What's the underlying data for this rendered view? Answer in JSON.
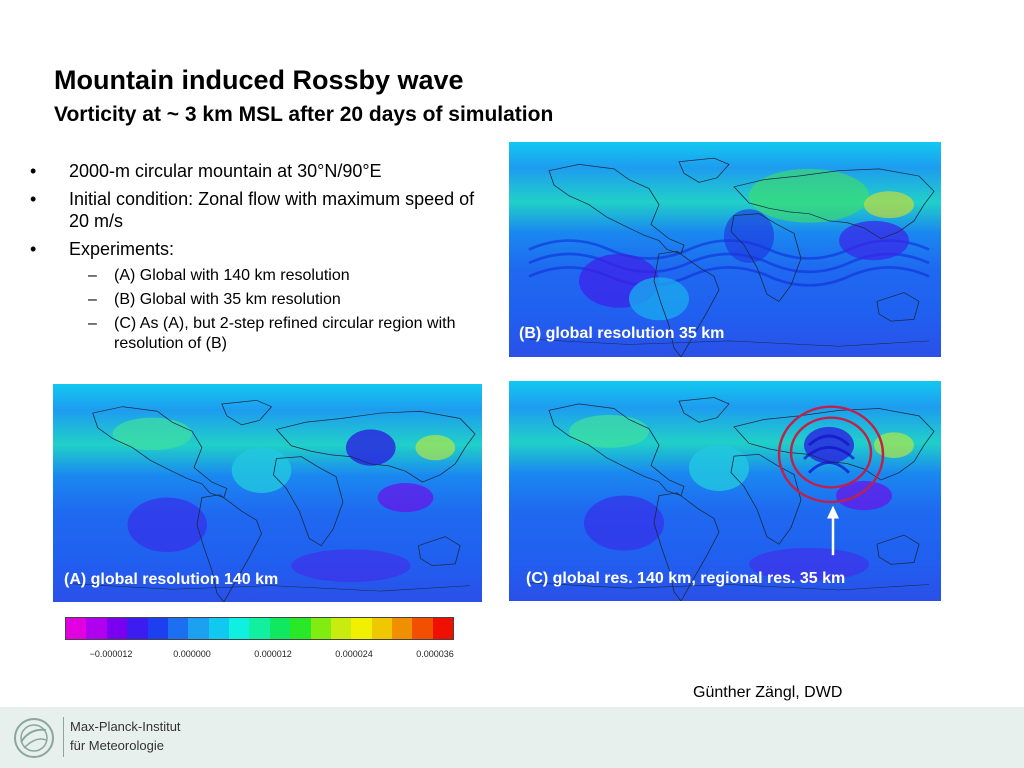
{
  "header": {
    "title": "Mountain induced Rossby wave",
    "subtitle": "Vorticity at ~ 3 km MSL after 20 days of simulation"
  },
  "bullets": {
    "items": [
      "2000-m circular mountain at 30°N/90°E",
      "Initial condition: Zonal flow with maximum speed of 20 m/s",
      "Experiments:"
    ],
    "sub_items": [
      "(A) Global with 140 km resolution",
      "(B) Global with 35 km resolution",
      "(C) As (A), but 2-step refined circular region with resolution of (B)"
    ],
    "bullet_marker": "•",
    "dash_marker": "–"
  },
  "panels": {
    "b_label": "(B) global resolution 35 km",
    "a_label": "(A) global resolution 140 km",
    "c_label": "(C) global res. 140 km, regional res. 35 km"
  },
  "colorbar": {
    "colors": [
      "#e000e0",
      "#b000f0",
      "#7a00f0",
      "#3c1cf0",
      "#1c40f0",
      "#1c70f0",
      "#1ca0f0",
      "#10c8f0",
      "#10f0e0",
      "#10f0a0",
      "#10e860",
      "#28e828",
      "#80ec10",
      "#c8ec10",
      "#f0f000",
      "#f0c800",
      "#f09000",
      "#f05000",
      "#f01000"
    ],
    "ticks": [
      "−0.000012",
      "0.000000",
      "0.000012",
      "0.000024",
      "0.000036"
    ]
  },
  "footer": {
    "author": "Günther Zängl, DWD",
    "institute_line1": "Max-Planck-Institut",
    "institute_line2": "für Meteorologie"
  },
  "colors": {
    "map_ocean": "#1f68f0",
    "map_band": "#2ad8c0",
    "ring_color": "#c0204a",
    "footer_bg": "#e8f0ed"
  }
}
